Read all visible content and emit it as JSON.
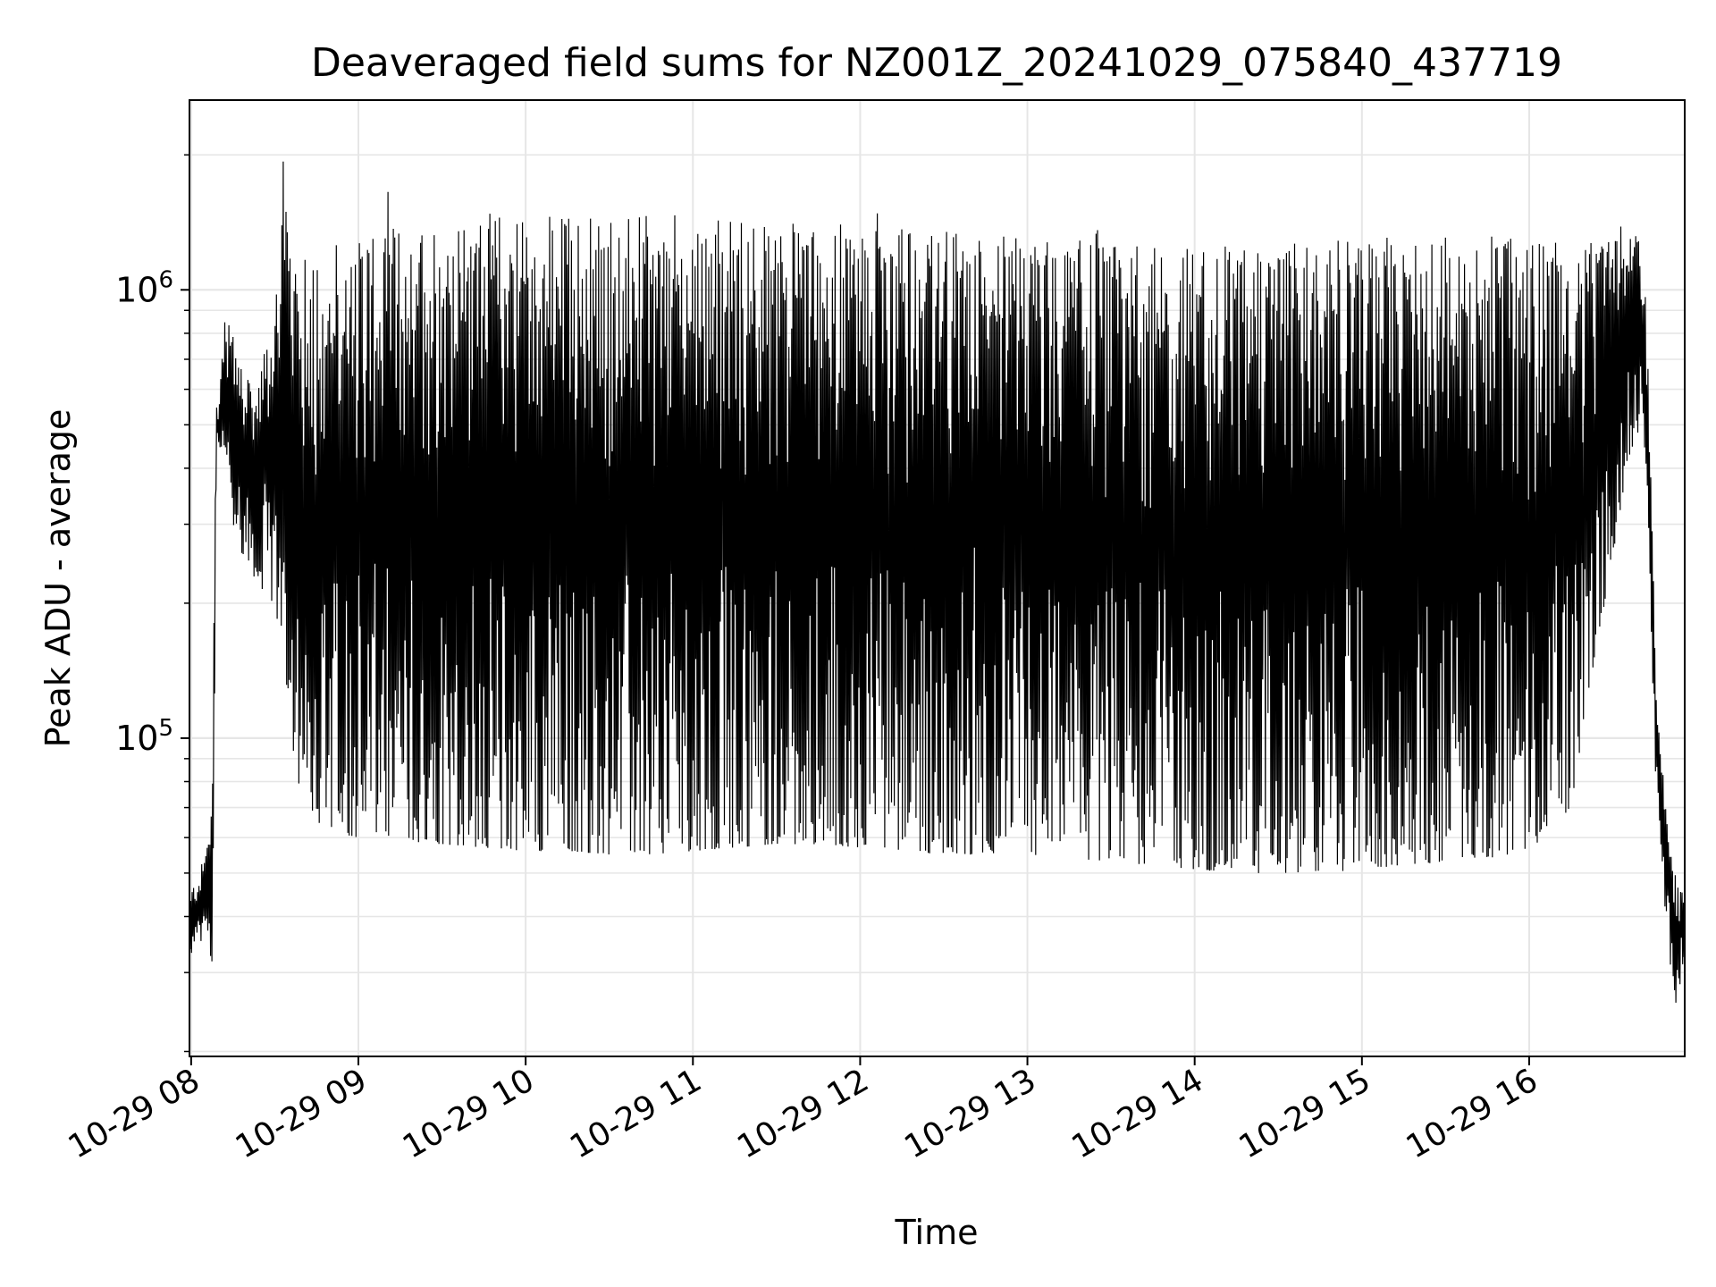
{
  "chart_data": {
    "type": "line",
    "title": "Deaveraged field sums for NZ001Z_20241029_075840_437719",
    "xlabel": "Time",
    "ylabel": "Peak ADU - average",
    "x_ticks": [
      "10-29 08",
      "10-29 09",
      "10-29 10",
      "10-29 11",
      "10-29 12",
      "10-29 13",
      "10-29 14",
      "10-29 15",
      "10-29 16"
    ],
    "xlim_hours": [
      7.99,
      16.93
    ],
    "y_scale": "log",
    "ylim": [
      19500,
      2650000
    ],
    "y_ticks": [
      {
        "base": "10",
        "exp": "5",
        "value": 100000
      },
      {
        "base": "10",
        "exp": "6",
        "value": 1000000
      }
    ],
    "grid": true,
    "line_color": "#000000",
    "series": [
      {
        "x_hours": [
          7.99,
          8.0,
          8.05,
          8.1,
          8.13,
          8.15,
          8.17,
          8.2,
          8.25,
          8.3,
          8.35,
          8.4,
          8.45,
          8.5,
          8.55,
          8.6,
          8.65,
          8.7,
          8.75,
          8.8,
          8.9,
          9.0,
          9.25,
          9.5,
          9.75,
          10.0,
          10.25,
          10.5,
          10.75,
          11.0,
          11.25,
          11.5,
          11.75,
          12.0,
          12.25,
          12.5,
          12.75,
          13.0,
          13.25,
          13.5,
          13.75,
          14.0,
          14.25,
          14.5,
          14.75,
          15.0,
          15.25,
          15.5,
          15.75,
          16.0,
          16.25,
          16.45,
          16.6,
          16.65,
          16.7,
          16.72,
          16.75,
          16.78,
          16.8,
          16.83,
          16.86,
          16.9,
          16.93
        ],
        "upper": [
          38000,
          46000,
          50000,
          60000,
          95000,
          600000,
          560000,
          950000,
          800000,
          680000,
          620000,
          600000,
          780000,
          900000,
          2200000,
          1050000,
          1150000,
          1200000,
          1250000,
          1300000,
          1350000,
          1380000,
          1420000,
          1450000,
          1480000,
          1500000,
          1480000,
          1470000,
          1460000,
          1480000,
          1450000,
          1430000,
          1420000,
          1400000,
          1380000,
          1360000,
          1340000,
          1320000,
          1300000,
          1280000,
          1260000,
          1260000,
          1260000,
          1270000,
          1280000,
          1300000,
          1320000,
          1330000,
          1320000,
          1300000,
          1260000,
          1280000,
          1340000,
          1380000,
          950000,
          500000,
          180000,
          100000,
          85000,
          70000,
          52000,
          45000,
          50000
        ],
        "lower": [
          32000,
          33000,
          34000,
          36000,
          30000,
          420000,
          440000,
          450000,
          300000,
          260000,
          240000,
          220000,
          210000,
          190000,
          160000,
          100000,
          75000,
          70000,
          66000,
          62000,
          61000,
          60000,
          59000,
          58000,
          57000,
          56000,
          56000,
          55000,
          55000,
          56000,
          57000,
          58000,
          58000,
          57000,
          56000,
          55000,
          55000,
          55000,
          54000,
          53000,
          52000,
          51000,
          50000,
          50000,
          50000,
          51000,
          52000,
          53000,
          54000,
          56000,
          70000,
          200000,
          420000,
          480000,
          400000,
          250000,
          90000,
          62000,
          45000,
          36000,
          24000,
          28000,
          33000
        ]
      }
    ]
  }
}
